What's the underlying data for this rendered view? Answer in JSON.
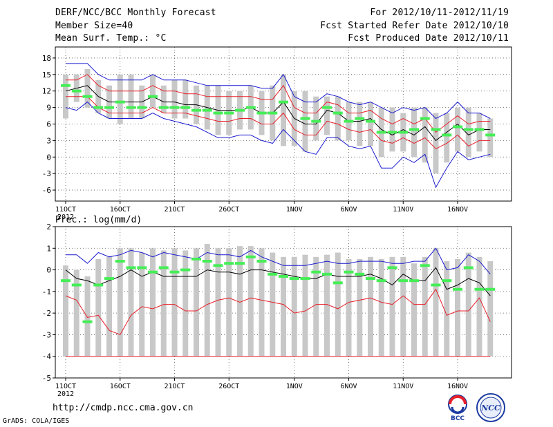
{
  "header": {
    "title": "DERF/NCC/BCC Monthly Forecast",
    "member_size": "Member Size=40",
    "variable": "Mean Surf. Temp.: °C",
    "forecast_for": "For 2012/10/11-2012/11/19",
    "refer_date": "Fcst Started Refer Date 2012/10/10",
    "produced_date": "Fcst Produced Date 2012/10/11"
  },
  "footer": {
    "url": "http://cmdp.ncc.cma.gov.cn",
    "credit": "GrADS: COLA/IGES",
    "logo_left_text": "BCC",
    "logo_right_text": "NCC"
  },
  "colors": {
    "bar": "#c8c8c8",
    "mean": "#000000",
    "spread": "#e8202a",
    "extreme": "#1a1ad0",
    "obs": "#44ee55",
    "grid": "#555555"
  },
  "chart_data": [
    {
      "type": "line",
      "title": "Mean Surf. Temp.: °C",
      "ylim": [
        -8,
        20
      ],
      "yticks": [
        "18",
        "15",
        "12",
        "9",
        "6",
        "3",
        "0",
        "-3",
        "-6"
      ],
      "ytick_values": [
        18,
        15,
        12,
        9,
        6,
        3,
        0,
        -3,
        -6
      ],
      "xtick_labels": [
        "11OCT",
        "16OCT",
        "21OCT",
        "26OCT",
        "1NOV",
        "6NOV",
        "11NOV",
        "16NOV"
      ],
      "xtick_index": [
        0,
        5,
        10,
        15,
        21,
        26,
        31,
        36
      ],
      "x_year": "2012",
      "days": 40,
      "bar_low": [
        7,
        10,
        9,
        8,
        7,
        6,
        7,
        7,
        9,
        8,
        7,
        7,
        6,
        5,
        4,
        4,
        5,
        5,
        4,
        3,
        2,
        2,
        1,
        3,
        4,
        3,
        3,
        2,
        2,
        0,
        1,
        1,
        0,
        -1,
        -3,
        -1,
        1,
        0,
        1,
        0
      ],
      "bar_high": [
        15,
        15,
        16,
        14,
        13,
        15,
        15,
        13,
        15,
        13,
        14,
        14,
        13,
        13,
        13,
        12,
        12,
        13,
        12,
        13,
        15,
        12,
        12,
        11,
        11,
        11,
        10,
        10,
        10,
        9,
        9,
        8,
        9,
        9,
        8,
        8,
        9,
        9,
        8,
        7
      ],
      "mean": [
        12,
        12.5,
        13,
        11,
        10,
        10,
        10,
        10,
        11,
        10,
        10,
        9.5,
        9.5,
        9,
        8.5,
        8.5,
        8.5,
        9,
        8,
        8,
        10,
        7,
        6,
        6,
        8.5,
        8,
        6.5,
        6.5,
        7,
        5,
        4,
        5,
        4,
        5.5,
        3,
        4.5,
        6,
        4,
        5,
        5
      ],
      "spread_low": [
        11,
        11,
        11,
        9,
        8,
        8,
        8,
        8,
        9,
        8,
        8,
        8,
        7.5,
        7,
        6.5,
        6.5,
        7,
        7,
        6,
        6,
        8,
        5,
        4,
        4,
        6.5,
        6,
        5,
        4.5,
        5,
        3,
        2.5,
        3.5,
        2.5,
        3.5,
        1.5,
        2.5,
        4,
        2,
        3,
        3
      ],
      "spread_high": [
        14,
        14,
        15,
        13,
        12,
        12,
        12,
        12,
        13,
        12,
        12,
        11.5,
        11.5,
        11,
        11,
        11,
        11,
        11,
        10.5,
        10.5,
        13,
        9,
        8,
        8,
        10,
        9.5,
        8,
        8,
        8.5,
        7,
        6,
        7,
        6,
        7,
        4.5,
        6,
        7.5,
        6,
        6.5,
        6.5
      ],
      "min": [
        9,
        8.5,
        10,
        8,
        7,
        7,
        7,
        7,
        8,
        7,
        6.5,
        6,
        5.5,
        4.5,
        3.5,
        3.5,
        4,
        4,
        3,
        2.5,
        5,
        3,
        1,
        0.5,
        3.5,
        3.5,
        2,
        1.5,
        2,
        -2,
        -2,
        0,
        -1,
        0.5,
        -5.5,
        -2,
        1,
        -0.5,
        0,
        0.5
      ],
      "max": [
        17,
        17,
        17,
        15,
        14,
        14,
        14,
        14,
        15,
        14,
        14,
        14,
        13.5,
        13,
        13,
        13,
        13,
        13,
        12.5,
        12.5,
        15,
        11,
        10,
        10,
        11.5,
        11,
        10,
        9.5,
        10,
        9,
        8,
        9,
        8.5,
        9,
        7,
        8,
        10,
        8,
        8,
        7
      ],
      "obs": [
        13,
        12,
        11,
        9,
        9,
        10,
        9,
        9,
        11,
        9,
        9,
        9,
        8.5,
        8.5,
        8,
        8,
        8.5,
        9,
        8,
        8,
        10,
        null,
        7,
        6.5,
        9,
        8,
        6.5,
        7,
        6.5,
        4.5,
        4.5,
        4.5,
        5,
        7,
        5,
        4,
        5.5,
        5,
        5,
        4
      ]
    },
    {
      "type": "line",
      "title": "Prec.: log(mm/d)",
      "ylim": [
        -5,
        2
      ],
      "yticks": [
        "2",
        "1",
        "0",
        "-1",
        "-2",
        "-3",
        "-4",
        "-5"
      ],
      "ytick_values": [
        2,
        1,
        0,
        -1,
        -2,
        -3,
        -4,
        -5
      ],
      "xtick_labels": [
        "11OCT",
        "16OCT",
        "21OCT",
        "26OCT",
        "1NOV",
        "6NOV",
        "11NOV",
        "16NOV"
      ],
      "xtick_index": [
        0,
        5,
        10,
        15,
        21,
        26,
        31,
        36
      ],
      "x_year": "2012",
      "days": 40,
      "bar_low": [
        -4,
        -4,
        -4,
        -4,
        -4,
        -4,
        -4,
        -4,
        -4,
        -4,
        -4,
        -4,
        -4,
        -4,
        -4,
        -4,
        -4,
        -4,
        -4,
        -4,
        -4,
        -4,
        -4,
        -4,
        -4,
        -4,
        -4,
        -4,
        -4,
        -4,
        -4,
        -4,
        -4,
        -4,
        -4,
        -4,
        -4,
        -4,
        -4,
        -4
      ],
      "bar_high": [
        0.2,
        0,
        -0.3,
        0.5,
        0.6,
        1,
        1,
        0.8,
        1,
        0.9,
        1,
        0.9,
        1,
        1.2,
        1,
        1,
        1.1,
        1.1,
        1,
        0.8,
        0.6,
        0.6,
        0.7,
        0.6,
        0.7,
        0.8,
        0.5,
        0.5,
        0.6,
        0.5,
        0.6,
        0.6,
        0.3,
        0.6,
        1,
        0.4,
        0.5,
        0.8,
        0.6,
        0.4
      ],
      "mean": [
        0,
        -0.4,
        -0.5,
        -0.7,
        -0.5,
        -0.3,
        0,
        -0.3,
        -0.1,
        -0.3,
        -0.3,
        -0.3,
        -0.3,
        0,
        -0.1,
        -0.1,
        -0.2,
        0,
        0,
        -0.1,
        -0.2,
        -0.3,
        -0.4,
        -0.4,
        -0.2,
        -0.3,
        -0.3,
        -0.3,
        -0.2,
        -0.4,
        -0.7,
        -0.2,
        -0.5,
        -0.5,
        0.1,
        -0.9,
        -0.7,
        -0.4,
        -0.6,
        -1.2
      ],
      "spread_low": [
        -1.2,
        -1.4,
        -2.2,
        -2.1,
        -2.8,
        -3,
        -2.1,
        -1.7,
        -1.8,
        -1.6,
        -1.6,
        -1.9,
        -1.9,
        -1.6,
        -1.4,
        -1.3,
        -1.5,
        -1.3,
        -1.4,
        -1.5,
        -1.6,
        -2,
        -1.9,
        -1.6,
        -1.6,
        -1.8,
        -1.5,
        -1.4,
        -1.3,
        -1.5,
        -1.6,
        -1.2,
        -1.6,
        -1.6,
        -0.9,
        -2.1,
        -1.9,
        -1.9,
        -1.3,
        -2.4
      ],
      "spread_high": [
        -0.1,
        -0.5,
        -0.6,
        -0.8,
        -0.6,
        -0.4,
        -0.1,
        -0.4,
        -0.2,
        -0.4,
        -0.4,
        -0.4,
        -0.4,
        -0.1,
        -0.2,
        -0.2,
        -0.3,
        -0.1,
        -0.1,
        -0.2,
        -0.3,
        -0.4,
        -0.5,
        -0.5,
        -0.3,
        -0.4,
        -0.4,
        -0.4,
        -0.3,
        -0.5,
        -0.8,
        -0.3,
        -0.6,
        -0.6,
        0,
        -1,
        -0.8,
        -0.5,
        -0.7,
        -1.3
      ],
      "min": [
        -4,
        -4,
        -4,
        -4,
        -4,
        -4,
        -4,
        -4,
        -4,
        -4,
        -4,
        -4,
        -4,
        -4,
        -4,
        -4,
        -4,
        -4,
        -4,
        -4,
        -4,
        -4,
        -4,
        -4,
        -4,
        -4,
        -4,
        -4,
        -4,
        -4,
        -4,
        -4,
        -4,
        -4,
        -4,
        -4,
        -4,
        -4,
        -4,
        -4
      ],
      "max": [
        0.7,
        0.7,
        0.3,
        0.8,
        0.6,
        0.7,
        0.9,
        0.8,
        0.6,
        0.8,
        0.7,
        0.6,
        0.5,
        0.8,
        0.7,
        0.7,
        0.6,
        0.9,
        0.6,
        0.4,
        0.2,
        0.2,
        0.2,
        0.3,
        0.4,
        0.3,
        0.3,
        0.4,
        0.4,
        0.4,
        0.3,
        0.3,
        0.4,
        0.4,
        1,
        0,
        0.1,
        0.7,
        0.4,
        -0.2
      ],
      "obs": [
        -0.5,
        -0.7,
        -2.4,
        -0.7,
        -0.4,
        0.4,
        0.1,
        0.1,
        -0.1,
        0.1,
        -0.1,
        0,
        0.5,
        0.4,
        0.2,
        0.3,
        0.3,
        0.6,
        0.4,
        -0.2,
        -0.3,
        -0.4,
        -0.4,
        -0.1,
        -0.2,
        -0.6,
        -0.1,
        -0.2,
        -0.4,
        -0.5,
        0.1,
        -0.5,
        -0.5,
        0.2,
        -0.7,
        -0.5,
        -0.9,
        0.1,
        -0.9,
        -0.9
      ]
    }
  ]
}
